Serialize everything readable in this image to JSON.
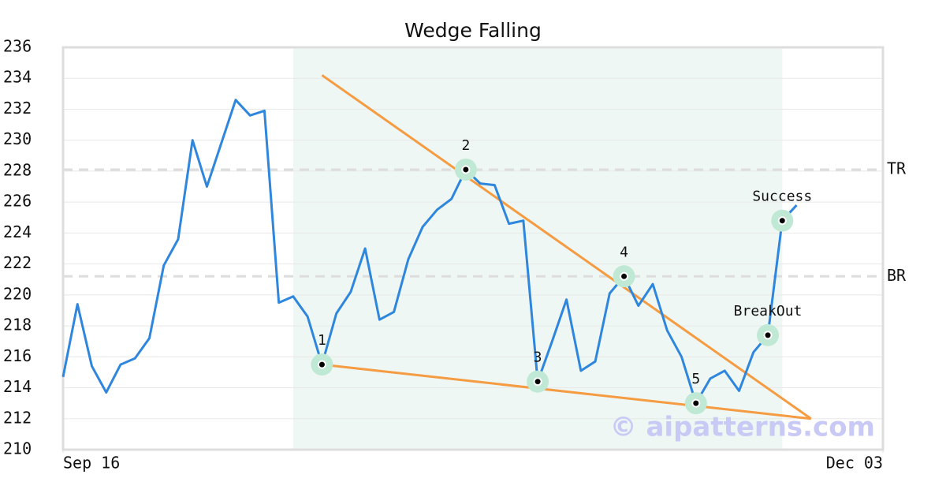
{
  "chart_data": {
    "type": "line",
    "title": "Wedge Falling",
    "color": "#2f86dd",
    "x": [
      0,
      1,
      2,
      3,
      4,
      5,
      6,
      7,
      8,
      9,
      10,
      11,
      12,
      13,
      14,
      15,
      16,
      17,
      18,
      19,
      20,
      21,
      22,
      23,
      24,
      25,
      26,
      27,
      28,
      29,
      30,
      31,
      32,
      33,
      34,
      35,
      36,
      37,
      38,
      39,
      40,
      41,
      42,
      43,
      44,
      45,
      46,
      47,
      48,
      49,
      50,
      51
    ],
    "values": [
      214.7,
      219.4,
      215.4,
      213.7,
      215.5,
      215.9,
      217.2,
      221.9,
      223.6,
      230.0,
      227.0,
      229.8,
      232.6,
      231.6,
      231.9,
      219.5,
      219.9,
      218.6,
      215.5,
      218.8,
      220.2,
      223.0,
      218.4,
      218.9,
      222.3,
      224.4,
      225.5,
      226.2,
      228.1,
      227.2,
      227.1,
      224.6,
      224.8,
      214.4,
      217.0,
      219.7,
      215.1,
      215.7,
      220.1,
      221.2,
      219.3,
      220.7,
      217.7,
      216.0,
      213.0,
      214.6,
      215.1,
      213.8,
      216.3,
      217.4,
      224.8,
      225.8
    ],
    "xlim": [
      0,
      57
    ],
    "xticks": [
      {
        "value": 0,
        "label": "Sep 16"
      },
      {
        "value": 57,
        "label": "Dec 03"
      }
    ],
    "ylim": [
      210,
      236
    ],
    "yticks": [
      210,
      212,
      214,
      216,
      218,
      220,
      222,
      224,
      226,
      228,
      230,
      232,
      234,
      236
    ],
    "grid": true,
    "shaded_region": {
      "x": [
        16,
        50
      ],
      "color": "#eef7f3"
    },
    "trend_lines": [
      {
        "x": [
          18,
          52
        ],
        "values": [
          234.2,
          212.0
        ],
        "color": "#f59b42"
      },
      {
        "x": [
          18,
          52
        ],
        "values": [
          215.5,
          212.0
        ],
        "color": "#f59b42"
      }
    ],
    "levels": [
      {
        "label": "TR",
        "value": 228.1,
        "color": "#dddddd"
      },
      {
        "label": "BR",
        "value": 221.2,
        "color": "#dddddd"
      }
    ],
    "point_color": "#bfe9d5",
    "points": [
      {
        "label": "1",
        "x": 18,
        "value": 215.5
      },
      {
        "label": "2",
        "x": 28,
        "value": 228.1
      },
      {
        "label": "3",
        "x": 33,
        "value": 214.4
      },
      {
        "label": "4",
        "x": 39,
        "value": 221.2
      },
      {
        "label": "5",
        "x": 44,
        "value": 213.0
      },
      {
        "label": "BreakOut",
        "x": 49,
        "value": 217.4
      },
      {
        "label": "Success",
        "x": 50,
        "value": 224.8
      }
    ],
    "watermark": "© aipatterns.com"
  }
}
